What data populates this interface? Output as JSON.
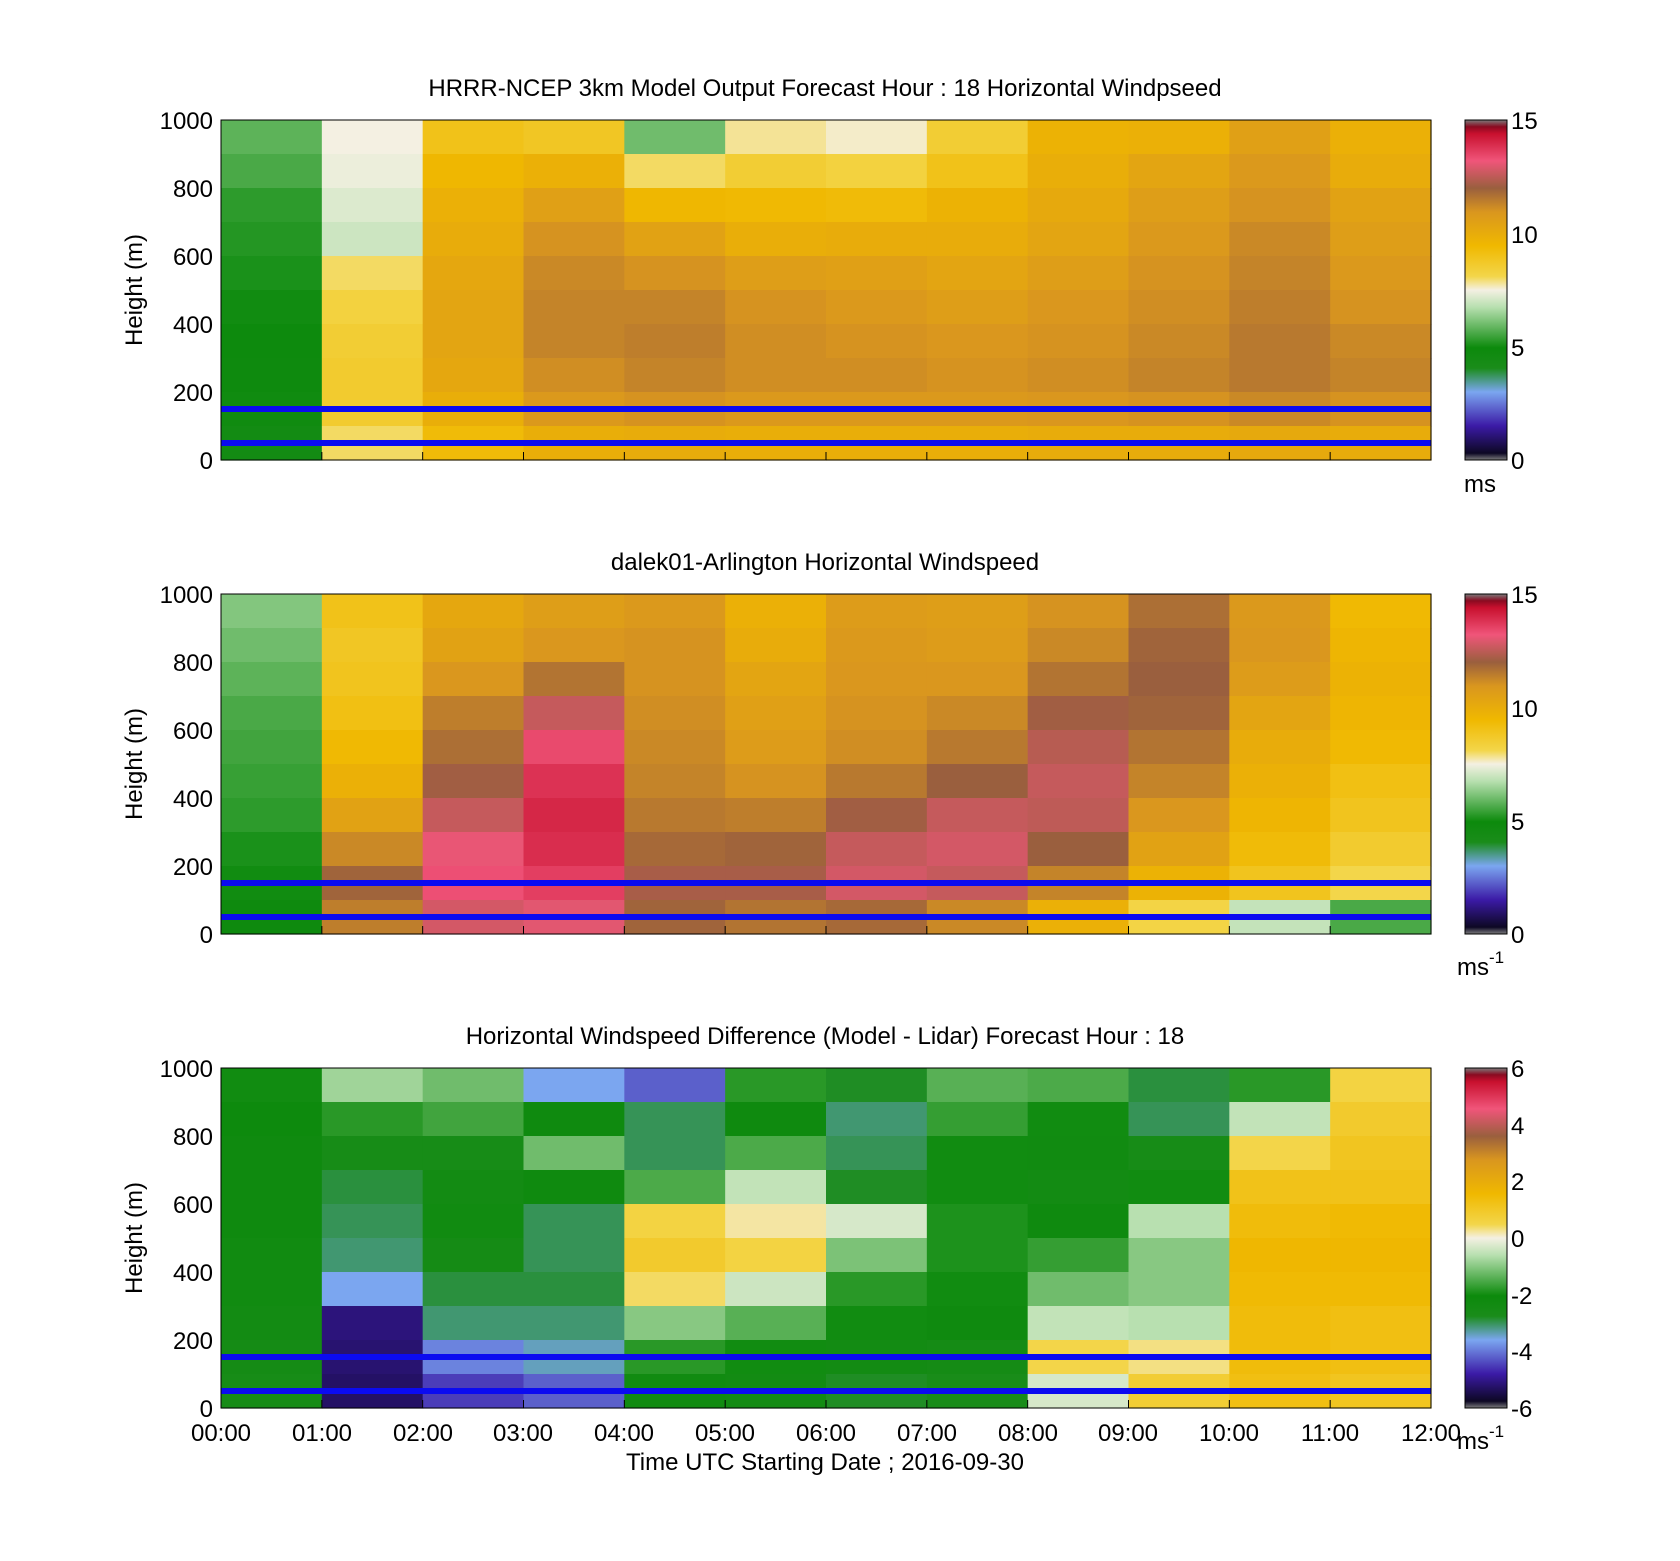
{
  "figure": {
    "xlabel": "Time UTC  Starting Date ; 2016-09-30",
    "x_ticks": [
      "00:00",
      "01:00",
      "02:00",
      "03:00",
      "04:00",
      "05:00",
      "06:00",
      "07:00",
      "08:00",
      "09:00",
      "10:00",
      "11:00",
      "12:00"
    ],
    "guide_lines_m": [
      150,
      50
    ],
    "guide_line_color": "#0b0bf0"
  },
  "chart_data": [
    {
      "type": "heatmap",
      "title": "HRRR-NCEP 3km Model Output   Forecast Hour : 18 Horizontal Windpseed",
      "xlabel": "",
      "ylabel": "Height (m)",
      "ylim": [
        0,
        1000
      ],
      "y_ticks": [
        "0",
        "200",
        "400",
        "600",
        "800",
        "1000"
      ],
      "colorbar": {
        "range": [
          0,
          15
        ],
        "ticks": [
          "0",
          "5",
          "10",
          "15"
        ],
        "unit": "ms",
        "unit_sup": ""
      },
      "x_hours": [
        0,
        1,
        2,
        3,
        4,
        5,
        6,
        7,
        8,
        9,
        10,
        11
      ],
      "height_bins_m": [
        1000,
        900,
        800,
        700,
        600,
        500,
        400,
        300,
        200,
        100
      ],
      "values_ms": [
        [
          5.8,
          7.5,
          9.0,
          8.8,
          6.0,
          7.8,
          7.6,
          8.5,
          9.7,
          9.8,
          10.5,
          9.8
        ],
        [
          5.6,
          7.4,
          9.5,
          9.8,
          8.0,
          8.5,
          8.3,
          9.0,
          9.9,
          10.3,
          10.8,
          10.0
        ],
        [
          5.3,
          7.2,
          9.8,
          10.5,
          9.5,
          9.4,
          9.3,
          9.7,
          10.1,
          10.6,
          11.0,
          10.4
        ],
        [
          5.2,
          7.0,
          10.0,
          11.0,
          10.4,
          9.9,
          10.0,
          10.0,
          10.3,
          10.8,
          11.2,
          10.6
        ],
        [
          5.1,
          8.0,
          10.2,
          11.2,
          11.0,
          10.6,
          10.5,
          10.3,
          10.6,
          11.0,
          11.3,
          10.8
        ],
        [
          5.0,
          8.3,
          10.3,
          11.3,
          11.3,
          11.0,
          10.8,
          10.6,
          10.9,
          11.1,
          11.4,
          11.0
        ],
        [
          4.9,
          8.5,
          10.3,
          11.3,
          11.4,
          11.1,
          11.0,
          10.9,
          11.0,
          11.2,
          11.5,
          11.2
        ],
        [
          4.8,
          8.6,
          10.2,
          11.1,
          11.3,
          11.1,
          11.1,
          11.0,
          11.1,
          11.3,
          11.5,
          11.3
        ],
        [
          4.7,
          8.6,
          9.9,
          10.8,
          11.0,
          10.8,
          10.8,
          10.8,
          10.9,
          11.0,
          11.2,
          11.0
        ],
        [
          4.5,
          8.0,
          9.3,
          9.9,
          10.0,
          9.9,
          9.9,
          9.9,
          10.0,
          10.0,
          10.1,
          10.0
        ]
      ]
    },
    {
      "type": "heatmap",
      "title": "dalek01-Arlington  Horizontal Windspeed",
      "xlabel": "",
      "ylabel": "Height (m)",
      "ylim": [
        0,
        1000
      ],
      "y_ticks": [
        "0",
        "200",
        "400",
        "600",
        "800",
        "1000"
      ],
      "colorbar": {
        "range": [
          0,
          15
        ],
        "ticks": [
          "0",
          "5",
          "10",
          "15"
        ],
        "unit": "ms",
        "unit_sup": "-1"
      },
      "x_hours": [
        0,
        1,
        2,
        3,
        4,
        5,
        6,
        7,
        8,
        9,
        10,
        11
      ],
      "height_bins_m": [
        1000,
        900,
        800,
        700,
        600,
        500,
        400,
        300,
        200,
        100
      ],
      "values_ms": [
        [
          6.2,
          9.0,
          10.2,
          10.6,
          10.8,
          9.8,
          10.7,
          10.6,
          11.0,
          11.7,
          10.8,
          9.4
        ],
        [
          6.0,
          8.8,
          10.4,
          10.9,
          11.0,
          10.0,
          10.8,
          10.7,
          11.2,
          11.9,
          10.9,
          9.6
        ],
        [
          5.8,
          8.9,
          10.9,
          11.6,
          11.0,
          10.3,
          10.9,
          10.9,
          11.6,
          12.0,
          10.7,
          9.7
        ],
        [
          5.6,
          9.1,
          11.4,
          12.6,
          11.1,
          10.5,
          11.0,
          11.2,
          12.1,
          11.9,
          10.3,
          9.6
        ],
        [
          5.5,
          9.4,
          11.7,
          13.4,
          11.2,
          10.7,
          11.1,
          11.5,
          12.4,
          11.6,
          10.0,
          9.4
        ],
        [
          5.4,
          9.8,
          12.1,
          13.8,
          11.3,
          11.0,
          11.5,
          12.0,
          12.6,
          11.3,
          9.8,
          9.1
        ],
        [
          5.3,
          10.4,
          12.6,
          14.0,
          11.5,
          11.4,
          12.1,
          12.6,
          12.5,
          10.9,
          9.6,
          8.9
        ],
        [
          5.1,
          11.2,
          13.1,
          13.9,
          11.8,
          11.9,
          12.6,
          12.8,
          12.0,
          10.4,
          9.3,
          8.6
        ],
        [
          5.0,
          11.9,
          13.3,
          13.6,
          12.2,
          12.2,
          12.8,
          12.6,
          11.3,
          9.7,
          8.9,
          8.1
        ],
        [
          4.8,
          11.4,
          12.8,
          13.0,
          11.9,
          11.6,
          11.8,
          11.2,
          9.8,
          8.2,
          6.9,
          5.6
        ]
      ]
    },
    {
      "type": "heatmap",
      "title": "Horizontal Windspeed Difference (Model - Lidar) Forecast Hour : 18",
      "xlabel": "Time UTC  Starting Date ; 2016-09-30",
      "ylabel": "Height (m)",
      "ylim": [
        0,
        1000
      ],
      "y_ticks": [
        "0",
        "200",
        "400",
        "600",
        "800",
        "1000"
      ],
      "colorbar": {
        "range": [
          -6,
          6
        ],
        "ticks": [
          "-6",
          "-4",
          "-2",
          "0",
          "2",
          "4",
          "6"
        ],
        "unit": "ms",
        "unit_sup": "-1"
      },
      "x_hours": [
        0,
        1,
        2,
        3,
        4,
        5,
        6,
        7,
        8,
        9,
        10,
        11
      ],
      "height_bins_m": [
        1000,
        900,
        800,
        700,
        600,
        500,
        400,
        300,
        200,
        100
      ],
      "values_ms": [
        [
          -2.0,
          -0.8,
          -1.2,
          -3.6,
          -4.2,
          -1.8,
          -2.8,
          -1.4,
          -1.5,
          -2.9,
          -1.8,
          0.6
        ],
        [
          -2.1,
          -1.8,
          -1.6,
          -2.2,
          -3.0,
          -2.2,
          -3.1,
          -1.7,
          -2.0,
          -3.0,
          -0.5,
          0.9
        ],
        [
          -2.2,
          -2.6,
          -2.6,
          -1.2,
          -3.0,
          -1.5,
          -3.0,
          -2.0,
          -2.3,
          -2.6,
          0.5,
          1.1
        ],
        [
          -2.2,
          -2.9,
          -2.4,
          -2.2,
          -1.5,
          -0.5,
          -2.8,
          -2.0,
          -2.4,
          -2.0,
          1.2,
          1.2
        ],
        [
          -2.2,
          -3.0,
          -2.3,
          -3.0,
          0.6,
          0.2,
          -0.3,
          -1.9,
          -2.2,
          -0.6,
          1.4,
          1.5
        ],
        [
          -2.3,
          -3.1,
          -2.5,
          -3.0,
          0.9,
          0.6,
          -1.1,
          -1.9,
          -1.7,
          -1.0,
          1.6,
          1.6
        ],
        [
          -2.3,
          -3.6,
          -2.9,
          -2.9,
          0.4,
          -0.4,
          -1.8,
          -2.0,
          -1.2,
          -1.0,
          1.5,
          1.5
        ],
        [
          -2.4,
          -5.2,
          -3.1,
          -3.1,
          -1.0,
          -1.4,
          -2.0,
          -2.2,
          -0.5,
          -0.6,
          1.4,
          1.3
        ],
        [
          -2.5,
          -5.3,
          -3.9,
          -3.4,
          -1.8,
          -2.0,
          -2.4,
          -2.5,
          0.5,
          0.3,
          1.4,
          1.3
        ],
        [
          -2.6,
          -5.4,
          -4.5,
          -4.2,
          -2.3,
          -2.4,
          -2.8,
          -2.7,
          -0.3,
          0.8,
          1.3,
          1.1
        ]
      ]
    }
  ]
}
